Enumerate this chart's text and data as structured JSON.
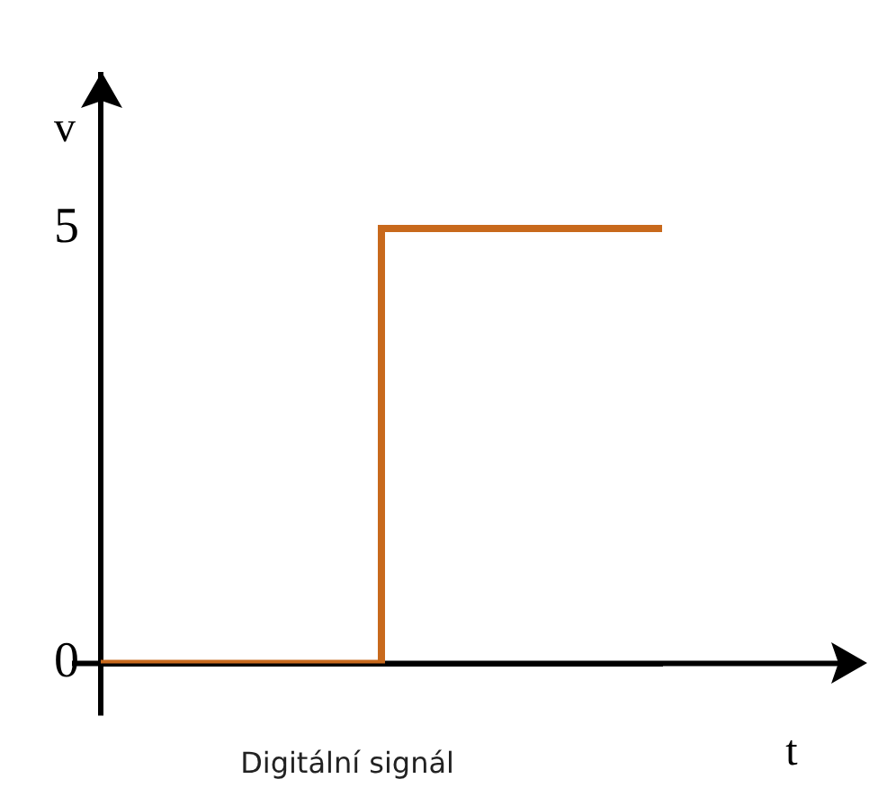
{
  "chart_data": {
    "type": "step",
    "title": "Digitální signál",
    "xlabel": "t",
    "ylabel": "v",
    "categories": [
      null,
      null,
      null
    ],
    "values": [
      0,
      5,
      5
    ],
    "color": "#c8691c",
    "ylim": [
      0,
      6.8
    ],
    "yticks": [
      0,
      5
    ],
    "grid": false,
    "legend": false,
    "tick_labels": "y"
  }
}
